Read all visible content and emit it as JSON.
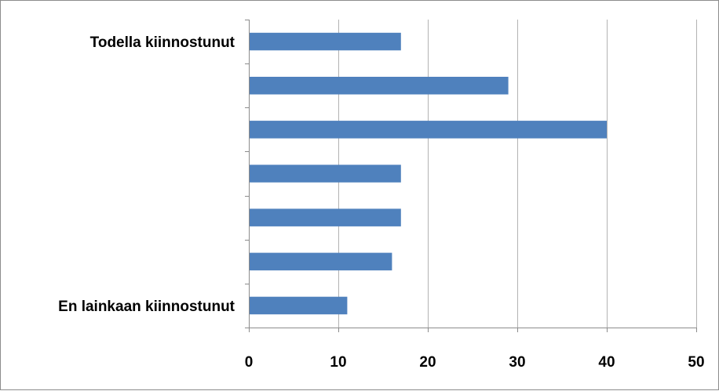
{
  "colors": {
    "bar": "#4f81bd",
    "gridline": "#b3b3b3",
    "axis": "#8c8c8c",
    "frame": "#8c8c8c"
  },
  "chart_data": {
    "type": "bar",
    "orientation": "horizontal",
    "categories": [
      "Todella kiinnostunut",
      "",
      "",
      "",
      "",
      "",
      "En lainkaan kiinnostunut"
    ],
    "values": [
      17,
      29,
      40,
      17,
      17,
      16,
      11
    ],
    "xlim": [
      0,
      50
    ],
    "xticks": [
      0,
      10,
      20,
      30,
      40,
      50
    ],
    "grid": "vertical major gridlines",
    "legend": "none"
  }
}
